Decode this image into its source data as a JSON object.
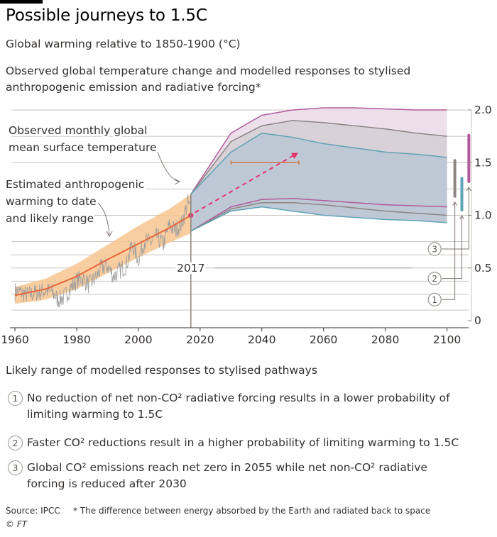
{
  "header": {
    "title": "Possible journeys to 1.5C",
    "subtitle": "Global warming relative to 1850-1900 (°C)",
    "description": "Observed global temperature change and modelled responses to stylised anthropogenic emission and radiative forcing*"
  },
  "colors": {
    "observed": "#9e9e9e",
    "anthropogenic_line": "#e8663c",
    "anthropogenic_range": "#f7c58f",
    "pathway_1_band": "#b9c8d8",
    "pathway_1_line": "#5fa3b7",
    "pathway_2_band": "#e9dde6",
    "pathway_2_line": "#8c8583",
    "pathway_3_line": "#b25a9c",
    "dashed_arrow": "#e6336e",
    "uncertainty_bar": "#d4672c"
  },
  "chart_data": {
    "type": "area",
    "x_axis": {
      "ticks": [
        1960,
        1980,
        2000,
        2020,
        2040,
        2060,
        2080,
        2100
      ],
      "range": [
        1957,
        2107
      ]
    },
    "y_axis": {
      "ticks": [
        0,
        0.5,
        1.0,
        1.5,
        2.0
      ],
      "tick_labels": [
        "0",
        "0.5",
        "1.0",
        "1.5",
        "2.0"
      ],
      "range": [
        0,
        2.0
      ]
    },
    "marked_year": 2017,
    "marked_year_label": "2017",
    "observed_monthly": {
      "label": "Observed monthly global mean surface temperature",
      "x": [
        1960,
        1962,
        1964,
        1966,
        1968,
        1970,
        1972,
        1974,
        1976,
        1978,
        1980,
        1982,
        1984,
        1986,
        1988,
        1990,
        1992,
        1994,
        1996,
        1998,
        2000,
        2002,
        2004,
        2006,
        2008,
        2010,
        2012,
        2014,
        2016,
        2017
      ],
      "y": [
        0.28,
        0.27,
        0.24,
        0.26,
        0.27,
        0.29,
        0.27,
        0.2,
        0.22,
        0.31,
        0.38,
        0.4,
        0.34,
        0.4,
        0.5,
        0.52,
        0.42,
        0.48,
        0.52,
        0.72,
        0.58,
        0.76,
        0.74,
        0.8,
        0.72,
        0.9,
        0.86,
        0.92,
        1.12,
        1.05
      ],
      "noise": 0.09
    },
    "anthropogenic_warming": {
      "label": "Estimated anthropogenic warming to date and likely range",
      "x": [
        1960,
        1970,
        1980,
        1990,
        2000,
        2010,
        2017
      ],
      "y": [
        0.24,
        0.3,
        0.42,
        0.58,
        0.73,
        0.88,
        1.0
      ],
      "low": [
        0.16,
        0.2,
        0.3,
        0.45,
        0.6,
        0.74,
        0.83
      ],
      "high": [
        0.32,
        0.4,
        0.54,
        0.72,
        0.9,
        1.06,
        1.2
      ]
    },
    "projection_arrow": {
      "from": [
        2017,
        1.0
      ],
      "to": [
        2051,
        1.58
      ]
    },
    "crossing_range_bar": {
      "x": [
        2030,
        2052
      ],
      "y": 1.5
    },
    "series": [
      {
        "name": "1",
        "x": [
          2017,
          2030,
          2040,
          2050,
          2060,
          2070,
          2080,
          2090,
          2100
        ],
        "upper": [
          1.2,
          1.6,
          1.78,
          1.74,
          1.68,
          1.64,
          1.6,
          1.58,
          1.55
        ],
        "lower": [
          0.85,
          1.04,
          1.08,
          1.04,
          1.0,
          0.98,
          0.96,
          0.95,
          0.93
        ]
      },
      {
        "name": "2",
        "x": [
          2017,
          2030,
          2040,
          2050,
          2060,
          2070,
          2080,
          2090,
          2100
        ],
        "upper": [
          1.2,
          1.7,
          1.85,
          1.9,
          1.88,
          1.85,
          1.82,
          1.78,
          1.75
        ],
        "lower": [
          0.85,
          1.06,
          1.12,
          1.12,
          1.1,
          1.07,
          1.04,
          1.02,
          1.0
        ]
      },
      {
        "name": "3",
        "x": [
          2017,
          2030,
          2040,
          2050,
          2060,
          2070,
          2080,
          2090,
          2100
        ],
        "upper": [
          1.2,
          1.78,
          1.95,
          2.0,
          2.02,
          2.02,
          2.01,
          2.0,
          2.0
        ],
        "lower": [
          0.85,
          1.08,
          1.15,
          1.16,
          1.14,
          1.12,
          1.1,
          1.09,
          1.08
        ]
      }
    ],
    "end_bars": [
      {
        "name": "1",
        "low": 1.18,
        "high": 1.52
      },
      {
        "name": "2",
        "low": 1.05,
        "high": 1.35
      },
      {
        "name": "3",
        "low": 1.32,
        "high": 1.76
      }
    ],
    "annotations": {
      "observed": [
        "Observed monthly global",
        "mean surface temperature"
      ],
      "anthropogenic": [
        "Estimated anthropogenic",
        "warming to date",
        "and likely range"
      ]
    },
    "markers": [
      {
        "label": "1",
        "y": 0.2
      },
      {
        "label": "2",
        "y": 0.4
      },
      {
        "label": "3",
        "y": 0.68
      }
    ]
  },
  "legend": {
    "heading": "Likely range of modelled responses to stylised pathways",
    "items": [
      {
        "num": "1",
        "text": "No reduction of net non-CO² radiative forcing results in a lower probability of limiting warming to 1.5C"
      },
      {
        "num": "2",
        "text": "Faster CO² reductions result in a higher probability of limiting warming to 1.5C"
      },
      {
        "num": "3",
        "text": "Global CO² emissions reach net zero in 2055 while net non-CO² radiative forcing is reduced after 2030"
      }
    ]
  },
  "footer": {
    "source": "Source: IPCC",
    "note": "* The difference between energy absorbed by the Earth and radiated back to space",
    "copyright": "© FT"
  }
}
